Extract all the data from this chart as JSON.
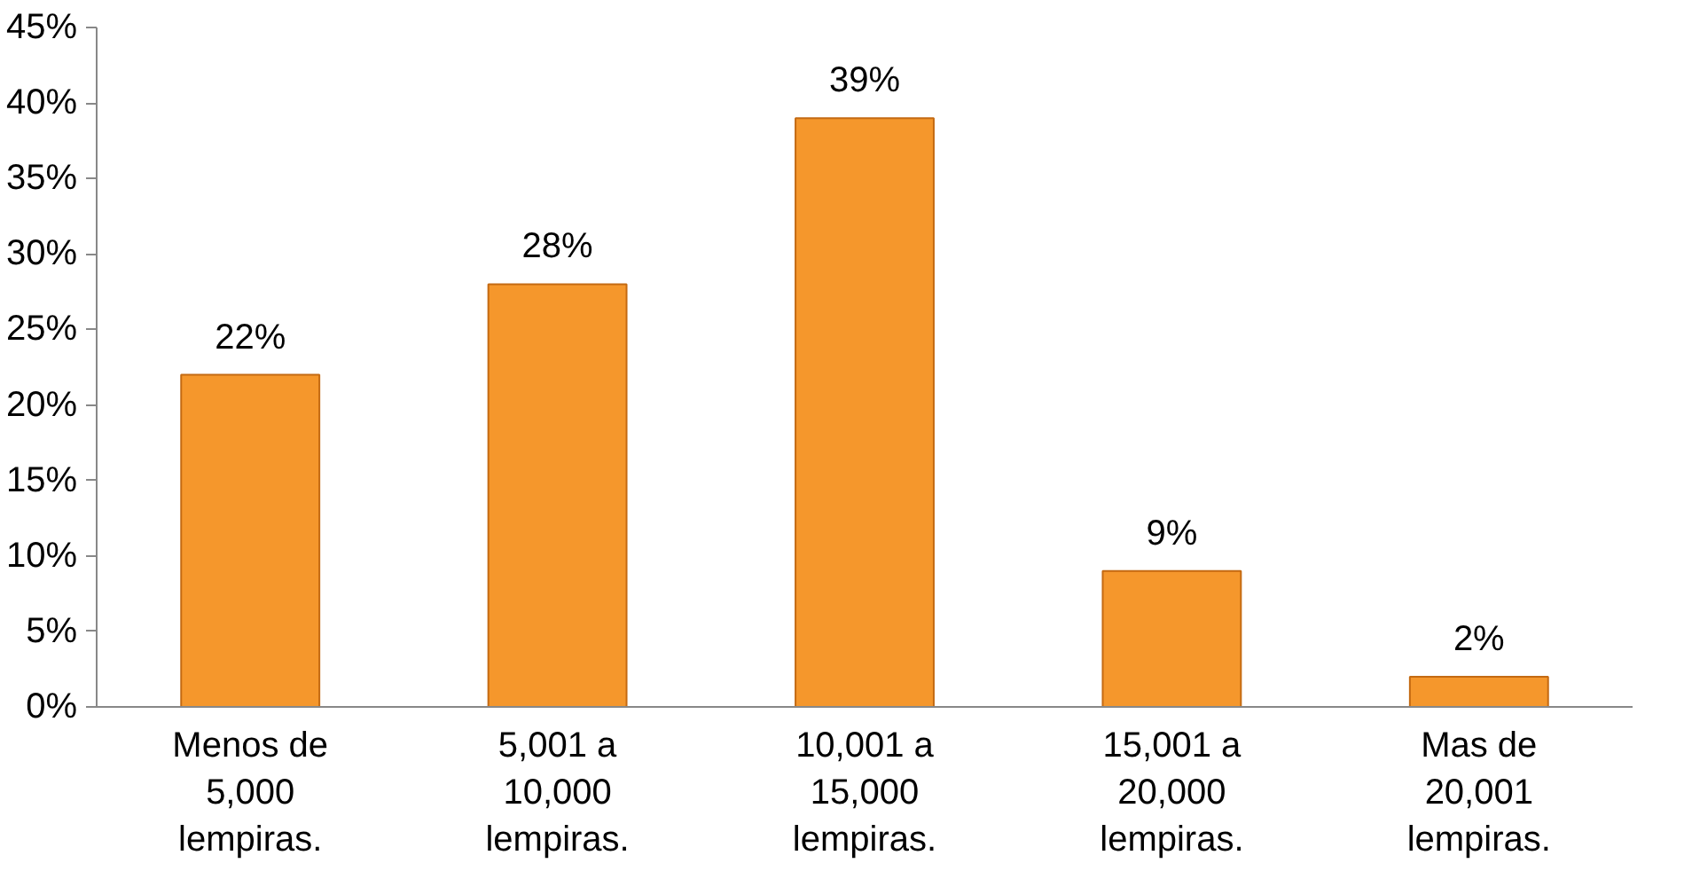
{
  "chart_data": {
    "type": "bar",
    "categories": [
      "Menos de 5,000 lempiras.",
      "5,001 a 10,000 lempiras.",
      "10,001 a 15,000 lempiras.",
      "15,001 a 20,000 lempiras.",
      "Mas de 20,001 lempiras."
    ],
    "values": [
      22,
      28,
      39,
      9,
      2
    ],
    "value_labels": [
      "22%",
      "28%",
      "39%",
      "9%",
      "2%"
    ],
    "color": "#f5972c",
    "ylim": [
      0,
      45
    ],
    "yticks": [
      {
        "value": 0,
        "label": "0%"
      },
      {
        "value": 5,
        "label": "5%"
      },
      {
        "value": 10,
        "label": "10%"
      },
      {
        "value": 15,
        "label": "15%"
      },
      {
        "value": 20,
        "label": "20%"
      },
      {
        "value": 25,
        "label": "25%"
      },
      {
        "value": 30,
        "label": "30%"
      },
      {
        "value": 35,
        "label": "35%"
      },
      {
        "value": 40,
        "label": "40%"
      },
      {
        "value": 45,
        "label": "45%"
      }
    ],
    "grid": false
  }
}
